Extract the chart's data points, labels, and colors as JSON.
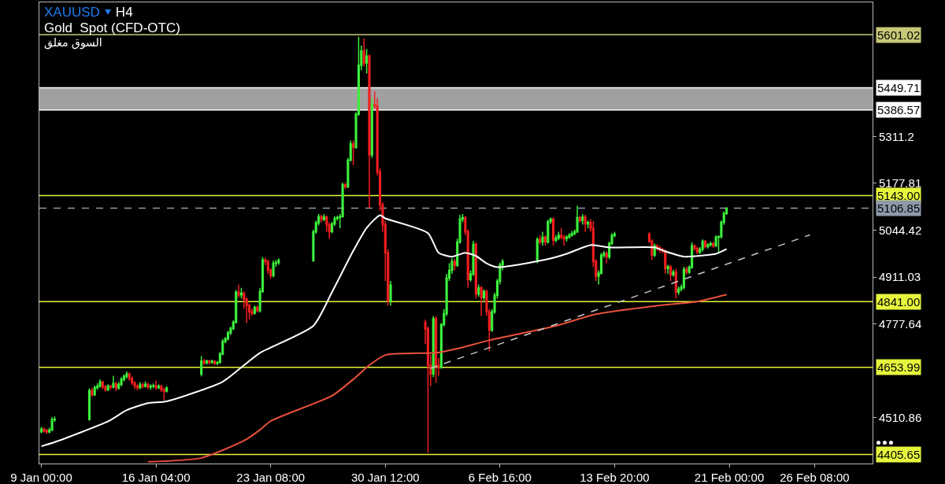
{
  "chart_data": {
    "type": "candlestick",
    "title": "XAUUSD",
    "subtitle": "Gold  Spot (CFD-OTC)",
    "annotations": [
      "H4",
      "السوق مغلق"
    ],
    "x": [
      "--01-09T00:00",
      "--01-09T04:00",
      "--01-09T08:00",
      "--01-09T12:00",
      "--01-09T16:00",
      "--01-09T20:00",
      "--01-12T00:00",
      "--01-12T04:00",
      "--01-12T08:00",
      "--01-12T12:00",
      "--01-12T16:00",
      "--01-12T20:00",
      "--01-13T00:00",
      "--01-13T04:00",
      "--01-13T08:00",
      "--01-13T12:00",
      "--01-13T16:00",
      "--01-13T20:00",
      "--01-14T00:00",
      "--01-14T04:00",
      "--01-14T08:00",
      "--01-14T12:00",
      "--01-14T16:00",
      "--01-14T20:00",
      "--01-15T00:00",
      "--01-15T04:00",
      "--01-15T08:00",
      "--01-15T12:00",
      "--01-15T16:00",
      "--01-15T20:00",
      "--01-16T00:00",
      "--01-16T04:00",
      "--01-16T08:00",
      "--01-16T12:00",
      "--01-16T16:00",
      "--01-16T20:00",
      "--01-19T00:00",
      "--01-19T04:00",
      "--01-19T08:00",
      "--01-19T12:00",
      "--01-19T16:00",
      "--01-19T20:00",
      "--01-20T00:00",
      "--01-20T04:00",
      "--01-20T08:00",
      "--01-20T12:00",
      "--01-20T16:00",
      "--01-20T20:00",
      "--01-21T00:00",
      "--01-21T04:00",
      "--01-21T08:00",
      "--01-21T12:00",
      "--01-21T16:00",
      "--01-21T20:00",
      "--01-22T00:00",
      "--01-22T04:00",
      "--01-22T08:00",
      "--01-22T12:00",
      "--01-22T16:00",
      "--01-22T20:00",
      "--01-23T00:00",
      "--01-23T04:00",
      "--01-23T08:00",
      "--01-23T12:00",
      "--01-23T16:00",
      "--01-23T20:00",
      "--01-26T00:00",
      "--01-26T04:00",
      "--01-26T08:00",
      "--01-26T12:00",
      "--01-26T16:00",
      "--01-26T20:00",
      "--01-27T00:00",
      "--01-27T04:00",
      "--01-27T08:00",
      "--01-27T12:00",
      "--01-27T16:00",
      "--01-27T20:00",
      "--01-28T00:00",
      "--01-28T04:00",
      "--01-28T08:00",
      "--01-28T12:00",
      "--01-28T16:00",
      "--01-28T20:00",
      "--01-29T00:00",
      "--01-29T04:00",
      "--01-29T08:00",
      "--01-29T12:00",
      "--01-29T16:00",
      "--01-29T20:00",
      "--01-30T00:00",
      "--01-30T04:00",
      "--01-30T08:00",
      "--01-30T12:00",
      "--01-30T16:00",
      "--01-30T20:00",
      "--02-02T00:00",
      "--02-02T04:00",
      "--02-02T08:00",
      "--02-02T12:00",
      "--02-02T16:00",
      "--02-02T20:00",
      "--02-03T00:00",
      "--02-03T04:00",
      "--02-03T08:00",
      "--02-03T12:00",
      "--02-03T16:00",
      "--02-03T20:00",
      "--02-04T00:00",
      "--02-04T04:00",
      "--02-04T08:00",
      "--02-04T12:00",
      "--02-04T16:00",
      "--02-04T20:00",
      "--02-05T00:00",
      "--02-05T04:00",
      "--02-05T08:00",
      "--02-05T12:00",
      "--02-05T16:00",
      "--02-05T20:00",
      "--02-06T00:00",
      "--02-06T04:00",
      "--02-06T08:00",
      "--02-06T12:00",
      "--02-06T16:00",
      "--02-06T20:00",
      "--02-09T00:00",
      "--02-09T04:00",
      "--02-09T08:00",
      "--02-09T12:00",
      "--02-09T16:00",
      "--02-09T20:00",
      "--02-10T00:00",
      "--02-10T04:00",
      "--02-10T08:00",
      "--02-10T12:00",
      "--02-10T16:00",
      "--02-10T20:00",
      "--02-11T00:00",
      "--02-11T04:00",
      "--02-11T08:00",
      "--02-11T12:00",
      "--02-11T16:00",
      "--02-11T20:00",
      "--02-12T00:00",
      "--02-12T04:00",
      "--02-12T08:00",
      "--02-12T12:00",
      "--02-12T16:00",
      "--02-12T20:00",
      "--02-13T00:00",
      "--02-13T04:00",
      "--02-13T08:00",
      "--02-13T12:00",
      "--02-13T16:00",
      "--02-13T20:00",
      "--02-16T00:00",
      "--02-16T04:00",
      "--02-16T08:00",
      "--02-16T12:00",
      "--02-16T16:00",
      "--02-16T20:00",
      "--02-17T00:00",
      "--02-17T04:00",
      "--02-17T08:00",
      "--02-17T12:00",
      "--02-17T16:00",
      "--02-17T20:00",
      "--02-18T00:00",
      "--02-18T04:00",
      "--02-18T08:00",
      "--02-18T12:00",
      "--02-18T16:00",
      "--02-18T20:00",
      "--02-19T00:00",
      "--02-19T04:00",
      "--02-19T08:00",
      "--02-19T12:00",
      "--02-19T16:00",
      "--02-19T20:00",
      "--02-20T00:00",
      "--02-20T04:00",
      "--02-20T08:00",
      "--02-20T12:00",
      "--02-20T16:00",
      "--02-20T20:00"
    ],
    "ohlc": [
      [
        4470,
        4484,
        4466,
        4478
      ],
      [
        4478,
        4482,
        4468,
        4472
      ],
      [
        4475,
        4478,
        4464,
        4470
      ],
      [
        4470,
        4482,
        4466,
        4476
      ],
      [
        4476,
        4512,
        4472,
        4505
      ],
      [
        4505,
        4514,
        4498,
        4506
      ],
      [
        4506,
        4594,
        4502,
        4588
      ],
      [
        4588,
        4596,
        4570,
        4576
      ],
      [
        4576,
        4602,
        4572,
        4596
      ],
      [
        4596,
        4608,
        4590,
        4600
      ],
      [
        4600,
        4620,
        4596,
        4612
      ],
      [
        4612,
        4616,
        4592,
        4598
      ],
      [
        4598,
        4604,
        4584,
        4590
      ],
      [
        4590,
        4606,
        4586,
        4600
      ],
      [
        4600,
        4604,
        4590,
        4598
      ],
      [
        4598,
        4630,
        4594,
        4608
      ],
      [
        4608,
        4612,
        4586,
        4595
      ],
      [
        4595,
        4612,
        4590,
        4605
      ],
      [
        4605,
        4626,
        4600,
        4620
      ],
      [
        4620,
        4634,
        4614,
        4628
      ],
      [
        4628,
        4642,
        4622,
        4635
      ],
      [
        4635,
        4640,
        4616,
        4622
      ],
      [
        4622,
        4628,
        4604,
        4610
      ],
      [
        4610,
        4614,
        4592,
        4600
      ],
      [
        4600,
        4606,
        4588,
        4596
      ],
      [
        4596,
        4612,
        4592,
        4604
      ],
      [
        4604,
        4610,
        4594,
        4600
      ],
      [
        4600,
        4614,
        4596,
        4606
      ],
      [
        4606,
        4610,
        4592,
        4598
      ],
      [
        4598,
        4606,
        4590,
        4600
      ],
      [
        4600,
        4608,
        4594,
        4602
      ],
      [
        4602,
        4616,
        4590,
        4596
      ],
      [
        4596,
        4606,
        4592,
        4600
      ],
      [
        4600,
        4604,
        4584,
        4590
      ],
      [
        4590,
        4596,
        4560,
        4586
      ],
      [
        4586,
        4600,
        4582,
        4595
      ],
      [
        4635,
        4686,
        4628,
        4672
      ],
      [
        4672,
        4678,
        4660,
        4667
      ],
      [
        4667,
        4676,
        4662,
        4672
      ],
      [
        4672,
        4676,
        4662,
        4668
      ],
      [
        4668,
        4676,
        4664,
        4671
      ],
      [
        4671,
        4674,
        4660,
        4665
      ],
      [
        4665,
        4672,
        4660,
        4668
      ],
      [
        4668,
        4698,
        4664,
        4692
      ],
      [
        4692,
        4734,
        4688,
        4728
      ],
      [
        4728,
        4740,
        4722,
        4735
      ],
      [
        4735,
        4758,
        4730,
        4752
      ],
      [
        4752,
        4770,
        4746,
        4765
      ],
      [
        4765,
        4788,
        4760,
        4782
      ],
      [
        4782,
        4874,
        4778,
        4868
      ],
      [
        4868,
        4890,
        4852,
        4860
      ],
      [
        4860,
        4880,
        4850,
        4865
      ],
      [
        4865,
        4870,
        4820,
        4848
      ],
      [
        4848,
        4852,
        4780,
        4830
      ],
      [
        4830,
        4836,
        4790,
        4812
      ],
      [
        4812,
        4822,
        4800,
        4808
      ],
      [
        4808,
        4830,
        4804,
        4825
      ],
      [
        4825,
        4830,
        4810,
        4815
      ],
      [
        4815,
        4880,
        4810,
        4870
      ],
      [
        4870,
        4968,
        4866,
        4960
      ],
      [
        4960,
        4966,
        4945,
        4955
      ],
      [
        4955,
        4960,
        4920,
        4930
      ],
      [
        4930,
        4936,
        4906,
        4915
      ],
      [
        4915,
        4958,
        4910,
        4950
      ],
      [
        4950,
        4960,
        4940,
        4952
      ],
      [
        4952,
        4964,
        4946,
        4958
      ],
      [
        4958,
        5046,
        4954,
        5040
      ],
      [
        5040,
        5072,
        5034,
        5065
      ],
      [
        5065,
        5090,
        5058,
        5083
      ],
      [
        5083,
        5088,
        5066,
        5075
      ],
      [
        5075,
        5090,
        5070,
        5082
      ],
      [
        5082,
        5086,
        5040,
        5060
      ],
      [
        5060,
        5066,
        5020,
        5040
      ],
      [
        5040,
        5068,
        5036,
        5062
      ],
      [
        5062,
        5084,
        5056,
        5078
      ],
      [
        5078,
        5086,
        5072,
        5080
      ],
      [
        5080,
        5090,
        5050,
        5083
      ],
      [
        5083,
        5180,
        5080,
        5174
      ],
      [
        5174,
        5180,
        5162,
        5168
      ],
      [
        5168,
        5250,
        5164,
        5244
      ],
      [
        5244,
        5300,
        5240,
        5290
      ],
      [
        5290,
        5300,
        5230,
        5280
      ],
      [
        5280,
        5380,
        5276,
        5375
      ],
      [
        5375,
        5595,
        5370,
        5514
      ],
      [
        5514,
        5570,
        5500,
        5555
      ],
      [
        5555,
        5590,
        5510,
        5520
      ],
      [
        5520,
        5560,
        5490,
        5540
      ],
      [
        5540,
        5545,
        5107,
        5259
      ],
      [
        5259,
        5420,
        5250,
        5402
      ],
      [
        5402,
        5440,
        5390,
        5398
      ],
      [
        5398,
        5420,
        5200,
        5210
      ],
      [
        5210,
        5220,
        5100,
        5116
      ],
      [
        5116,
        5124,
        5040,
        5060
      ],
      [
        5060,
        5070,
        4900,
        4980
      ],
      [
        4980,
        4990,
        4830,
        4843
      ],
      [
        4843,
        4900,
        4830,
        4888
      ],
      [
        4781,
        4790,
        4720,
        4763
      ],
      [
        4763,
        4770,
        4411,
        4660
      ],
      [
        4660,
        4690,
        4600,
        4635
      ],
      [
        4635,
        4800,
        4626,
        4792
      ],
      [
        4792,
        4800,
        4610,
        4660
      ],
      [
        4660,
        4680,
        4630,
        4655
      ],
      [
        4655,
        4780,
        4650,
        4776
      ],
      [
        4776,
        4820,
        4770,
        4807
      ],
      [
        4807,
        4920,
        4800,
        4908
      ],
      [
        4908,
        4950,
        4900,
        4930
      ],
      [
        4930,
        4964,
        4920,
        4955
      ],
      [
        4955,
        4962,
        4930,
        4944
      ],
      [
        4944,
        5020,
        4940,
        5011
      ],
      [
        5011,
        5088,
        5006,
        5076
      ],
      [
        5076,
        5090,
        5068,
        5080
      ],
      [
        5080,
        5084,
        5030,
        5040
      ],
      [
        5040,
        5046,
        4880,
        4904
      ],
      [
        4904,
        4930,
        4898,
        4920
      ],
      [
        4920,
        5014,
        4914,
        5004
      ],
      [
        5004,
        5010,
        4850,
        4863
      ],
      [
        4863,
        4890,
        4855,
        4880
      ],
      [
        4880,
        4886,
        4800,
        4852
      ],
      [
        4852,
        4876,
        4845,
        4870
      ],
      [
        4870,
        4875,
        4800,
        4812
      ],
      [
        4812,
        4820,
        4700,
        4760
      ],
      [
        4760,
        4820,
        4755,
        4812
      ],
      [
        4812,
        4866,
        4806,
        4859
      ],
      [
        4859,
        4906,
        4850,
        4899
      ],
      [
        4899,
        4952,
        4890,
        4946
      ],
      [
        4946,
        4962,
        4930,
        4955
      ],
      [
        4955,
        5024,
        4950,
        5018
      ],
      [
        5018,
        5030,
        5004,
        5011
      ],
      [
        5011,
        5040,
        5000,
        5024
      ],
      [
        5024,
        5030,
        5000,
        5011
      ],
      [
        5011,
        5074,
        5006,
        5069
      ],
      [
        5069,
        5080,
        5062,
        5076
      ],
      [
        5076,
        5080,
        5000,
        5016
      ],
      [
        5016,
        5030,
        5010,
        5022
      ],
      [
        5022,
        5040,
        5016,
        5030
      ],
      [
        5030,
        5050,
        5018,
        5024
      ],
      [
        5024,
        5032,
        5000,
        5020
      ],
      [
        5020,
        5030,
        5012,
        5025
      ],
      [
        5025,
        5036,
        5020,
        5030
      ],
      [
        5030,
        5042,
        5026,
        5035
      ],
      [
        5035,
        5046,
        5030,
        5040
      ],
      [
        5040,
        5114,
        5036,
        5080
      ],
      [
        5080,
        5086,
        5066,
        5072
      ],
      [
        5072,
        5090,
        5060,
        5082
      ],
      [
        5082,
        5088,
        5040,
        5062
      ],
      [
        5062,
        5072,
        5050,
        5066
      ],
      [
        5066,
        5076,
        5040,
        5050
      ],
      [
        5050,
        5070,
        4940,
        4955
      ],
      [
        4955,
        4962,
        4900,
        4913
      ],
      [
        4913,
        4930,
        4890,
        4922
      ],
      [
        4922,
        4980,
        4918,
        4973
      ],
      [
        4973,
        4985,
        4966,
        4978
      ],
      [
        4978,
        4984,
        4950,
        4968
      ],
      [
        4968,
        5012,
        4962,
        5007
      ],
      [
        5007,
        5036,
        5002,
        5029
      ],
      [
        5029,
        5040,
        5024,
        5033
      ],
      [
        5033,
        5038,
        5008,
        5013
      ],
      [
        5013,
        5018,
        4960,
        4973
      ],
      [
        4973,
        5006,
        4968,
        5000
      ],
      [
        5000,
        5004,
        4986,
        4994
      ],
      [
        4994,
        5000,
        4980,
        4988
      ],
      [
        4988,
        4994,
        4978,
        4985
      ],
      [
        4985,
        4990,
        4920,
        4935
      ],
      [
        4935,
        4946,
        4920,
        4940
      ],
      [
        4940,
        4945,
        4900,
        4917
      ],
      [
        4917,
        4932,
        4912,
        4925
      ],
      [
        4925,
        4935,
        4850,
        4868
      ],
      [
        4868,
        4884,
        4860,
        4877
      ],
      [
        4877,
        4890,
        4870,
        4882
      ],
      [
        4882,
        4940,
        4876,
        4933
      ],
      [
        4933,
        4940,
        4918,
        4925
      ],
      [
        4925,
        4944,
        4920,
        4939
      ],
      [
        4939,
        5010,
        4934,
        5000
      ],
      [
        5000,
        5004,
        4986,
        4992
      ],
      [
        4992,
        4998,
        4976,
        4982
      ],
      [
        4982,
        4996,
        4976,
        4990
      ],
      [
        4990,
        5018,
        4984,
        5013
      ],
      [
        5013,
        5016,
        4992,
        4998
      ],
      [
        4998,
        5008,
        4992,
        5003
      ],
      [
        5003,
        5012,
        4998,
        5006
      ],
      [
        5006,
        5010,
        4994,
        5000
      ],
      [
        5000,
        5030,
        4996,
        5024
      ],
      [
        5024,
        5030,
        4980,
        5026
      ],
      [
        5026,
        5072,
        5020,
        5067
      ],
      [
        5067,
        5098,
        5060,
        5092
      ],
      [
        5092,
        5110,
        5088,
        5106.85
      ]
    ],
    "colors": [
      "#3cf03c",
      "#f01e1e",
      "#f01e1e",
      "#3cf03c",
      "#3cf03c",
      "#3cf03c",
      "#3cf03c",
      "#f01e1e",
      "#3cf03c",
      "#3cf03c",
      "#3cf03c",
      "#f01e1e",
      "#f01e1e",
      "#3cf03c",
      "#f01e1e",
      "#3cf03c",
      "#f01e1e",
      "#3cf03c",
      "#3cf03c",
      "#3cf03c",
      "#3cf03c",
      "#f01e1e",
      "#f01e1e",
      "#f01e1e",
      "#f01e1e",
      "#3cf03c",
      "#f01e1e",
      "#3cf03c",
      "#f01e1e",
      "#3cf03c",
      "#3cf03c",
      "#f01e1e",
      "#3cf03c",
      "#f01e1e",
      "#f01e1e",
      "#3cf03c",
      "#3cf03c",
      "#f01e1e",
      "#3cf03c",
      "#f01e1e",
      "#3cf03c",
      "#f01e1e",
      "#3cf03c",
      "#3cf03c",
      "#3cf03c",
      "#3cf03c",
      "#3cf03c",
      "#3cf03c",
      "#3cf03c",
      "#3cf03c",
      "#f01e1e",
      "#3cf03c",
      "#f01e1e",
      "#f01e1e",
      "#f01e1e",
      "#f01e1e",
      "#3cf03c",
      "#f01e1e",
      "#3cf03c",
      "#3cf03c",
      "#f01e1e",
      "#f01e1e",
      "#f01e1e",
      "#3cf03c",
      "#3cf03c",
      "#3cf03c",
      "#3cf03c",
      "#3cf03c",
      "#3cf03c",
      "#f01e1e",
      "#3cf03c",
      "#f01e1e",
      "#f01e1e",
      "#3cf03c",
      "#3cf03c",
      "#3cf03c",
      "#3cf03c",
      "#3cf03c",
      "#f01e1e",
      "#3cf03c",
      "#3cf03c",
      "#f01e1e",
      "#3cf03c",
      "#3cf03c",
      "#3cf03c",
      "#f01e1e",
      "#3cf03c",
      "#f01e1e",
      "#3cf03c",
      "#f01e1e",
      "#f01e1e",
      "#f01e1e",
      "#f01e1e",
      "#f01e1e",
      "#f01e1e",
      "#3cf03c",
      "#f01e1e",
      "#f01e1e",
      "#f01e1e",
      "#3cf03c",
      "#f01e1e",
      "#f01e1e",
      "#3cf03c",
      "#3cf03c",
      "#3cf03c",
      "#3cf03c",
      "#3cf03c",
      "#f01e1e",
      "#3cf03c",
      "#3cf03c",
      "#3cf03c",
      "#f01e1e",
      "#f01e1e",
      "#3cf03c",
      "#3cf03c",
      "#f01e1e",
      "#3cf03c",
      "#f01e1e",
      "#3cf03c",
      "#f01e1e",
      "#f01e1e",
      "#3cf03c",
      "#3cf03c",
      "#3cf03c",
      "#3cf03c",
      "#3cf03c",
      "#3cf03c",
      "#f01e1e",
      "#3cf03c",
      "#f01e1e",
      "#3cf03c",
      "#3cf03c",
      "#f01e1e",
      "#3cf03c",
      "#3cf03c",
      "#f01e1e",
      "#f01e1e",
      "#3cf03c",
      "#3cf03c",
      "#3cf03c",
      "#3cf03c",
      "#3cf03c",
      "#f01e1e",
      "#3cf03c",
      "#f01e1e",
      "#3cf03c",
      "#f01e1e",
      "#f01e1e",
      "#f01e1e",
      "#3cf03c",
      "#3cf03c",
      "#3cf03c",
      "#f01e1e",
      "#3cf03c",
      "#3cf03c",
      "#3cf03c",
      "#f01e1e",
      "#f01e1e",
      "#3cf03c",
      "#f01e1e",
      "#f01e1e",
      "#f01e1e",
      "#f01e1e",
      "#3cf03c",
      "#f01e1e",
      "#3cf03c",
      "#f01e1e",
      "#3cf03c",
      "#3cf03c",
      "#3cf03c",
      "#f01e1e",
      "#3cf03c",
      "#3cf03c",
      "#f01e1e",
      "#f01e1e",
      "#3cf03c",
      "#3cf03c",
      "#f01e1e",
      "#3cf03c",
      "#3cf03c",
      "#f01e1e",
      "#3cf03c",
      "#3cf03c",
      "#3cf03c",
      "#3cf03c",
      "#3cf03c"
    ],
    "series": [
      {
        "type": "line",
        "color": "#ffffff",
        "x": [
          "--01-09T00:00",
          "--01-09T20:00",
          "--01-13T04:00",
          "--01-14T08:00",
          "--01-15T16:00",
          "--01-16T20:00",
          "--01-20T08:00",
          "--01-21T16:00",
          "--01-22T16:00",
          "--01-26T00:00",
          "--01-27T04:00",
          "--01-28T12:00",
          "--01-29T08:00",
          "--01-30T04:00",
          "--01-30T12:00",
          "--02-02T04:00",
          "--02-02T20:00",
          "--02-03T16:00",
          "--02-04T12:00",
          "--02-05T04:00",
          "--02-05T20:00",
          "--02-06T12:00",
          "--02-09T16:00",
          "--02-10T20:00",
          "--02-12T08:00",
          "--02-13T12:00",
          "--02-16T08:00",
          "--02-17T00:00",
          "--02-18T04:00",
          "--02-19T12:00",
          "--02-20T04:00",
          "--02-20T20:00"
        ],
        "values": [
          4429,
          4441,
          4500,
          4532,
          4552,
          4557,
          4613,
          4660,
          4695,
          4772,
          4868,
          4986,
          5051,
          5087,
          5078,
          5036,
          4980,
          4969,
          4980,
          4971,
          4950,
          4939,
          4962,
          4977,
          5002,
          4995,
          4995,
          4984,
          4969,
          4973,
          4977,
          4991
        ]
      },
      {
        "type": "line",
        "color": "#e8503c",
        "x": [
          "--01-15T16:00",
          "--01-19T00:00",
          "--01-21T16:00",
          "--01-22T16:00",
          "--01-23T08:00",
          "--01-27T04:00",
          "--01-28T12:00",
          "--01-29T12:00",
          "--01-30T12:00",
          "--02-02T20:00",
          "--02-04T00:00",
          "--02-06T00:00",
          "--02-10T04:00",
          "--02-12T16:00",
          "--02-17T00:00",
          "--02-19T00:00",
          "--02-20T20:00"
        ],
        "values": [
          4385,
          4396,
          4445,
          4476,
          4501,
          4573,
          4620,
          4660,
          4689,
          4696,
          4707,
          4731,
          4772,
          4805,
          4832,
          4841,
          4861
        ]
      },
      {
        "type": "line",
        "color": "#c8c8c8",
        "line_style": "dashed",
        "x": [
          "--02-02T08:00",
          "--02-26T01:00"
        ],
        "values": [
          4651,
          5031
        ]
      }
    ],
    "xlim": [
      "--01-08T21:00",
      "--03-01T23:00"
    ],
    "xticks": [
      {
        "value": "--01-09T00:00",
        "label": "9 Jan 00:00"
      },
      {
        "value": "--01-16T04:00",
        "label": "16 Jan 04:00"
      },
      {
        "value": "--01-23T08:00",
        "label": "23 Jan 08:00"
      },
      {
        "value": "--01-30T12:00",
        "label": "30 Jan 12:00"
      },
      {
        "value": "--02-06T16:00",
        "label": "6 Feb 16:00"
      },
      {
        "value": "--02-13T20:00",
        "label": "13 Feb 20:00"
      },
      {
        "value": "--02-21T00:00",
        "label": "21 Feb 00:00"
      },
      {
        "value": "--02-26T08:00",
        "label": "26 Feb 08:00"
      }
    ],
    "ylim": [
      4380,
      5693
    ],
    "yticks": [
      4510.86,
      4777.64,
      4911.03,
      5044.42,
      5177.81,
      5311.2
    ],
    "ref_lines": [
      {
        "axis": "y",
        "value": 5601.02,
        "label": "5601.02",
        "color": "#c8c878"
      },
      {
        "axis": "y",
        "value": 5449.71,
        "label": "5449.71",
        "color": "#ffffff"
      },
      {
        "axis": "y",
        "value": 5386.57,
        "label": "5386.57",
        "color": "#ffffff"
      },
      {
        "axis": "y",
        "value": 5143.0,
        "label": "5143.00",
        "color": "#e6f53c"
      },
      {
        "axis": "y",
        "value": 5106.85,
        "label": "5106.85",
        "color": "#8e9aaa",
        "line_style": "dashed"
      },
      {
        "axis": "y",
        "value": 4841.0,
        "label": "4841.00",
        "color": "#e6f53c"
      },
      {
        "axis": "y",
        "value": 4653.99,
        "label": "4653.99",
        "color": "#e6f53c"
      },
      {
        "axis": "y",
        "value": 4405.65,
        "label": "4405.65",
        "color": "#e6f53c"
      }
    ],
    "bands": [
      {
        "axis": "y",
        "from": 5386.57,
        "to": 5449.71,
        "color": "#a0a0a0"
      }
    ],
    "grid": false
  }
}
